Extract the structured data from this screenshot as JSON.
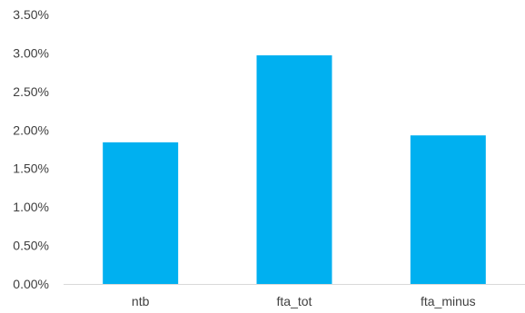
{
  "chart_data": {
    "type": "bar",
    "title": "",
    "xlabel": "",
    "ylabel": "",
    "categories": [
      "ntb",
      "fta_tot",
      "fta_minus"
    ],
    "values": [
      1.84,
      2.97,
      1.93
    ],
    "value_unit": "%",
    "ylim": [
      0,
      3.5
    ],
    "yticks": [
      0,
      0.5,
      1.0,
      1.5,
      2.0,
      2.5,
      3.0,
      3.5
    ],
    "ytick_labels": [
      "0.00%",
      "0.50%",
      "1.00%",
      "1.50%",
      "2.00%",
      "2.50%",
      "3.00%",
      "3.50%"
    ],
    "grid": false,
    "legend": "none",
    "bar_color": "#00B0F0"
  }
}
